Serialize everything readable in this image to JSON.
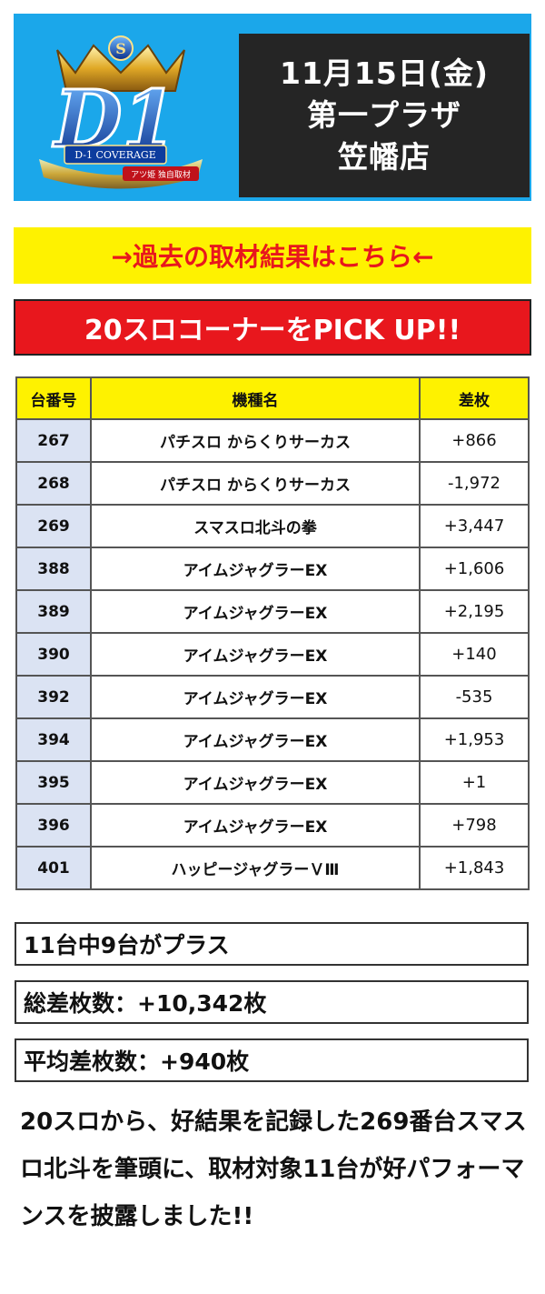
{
  "header": {
    "logo": {
      "letters": "D1",
      "badge": "S",
      "ribbon": "D-1 COVERAGE",
      "sub": "アツ姫 独自取材"
    },
    "date_line": "11月15日(金)",
    "store_line1": "第一プラザ",
    "store_line2": "笠幡店"
  },
  "past_link_label": "→過去の取材結果はこちら←",
  "pickup_heading": "20スロコーナーをPICK UP!!",
  "table": {
    "headers": [
      "台番号",
      "機種名",
      "差枚"
    ],
    "rows": [
      {
        "num": "267",
        "name": "パチスロ からくりサーカス",
        "diff": "+866"
      },
      {
        "num": "268",
        "name": "パチスロ からくりサーカス",
        "diff": "-1,972"
      },
      {
        "num": "269",
        "name": "スマスロ北斗の拳",
        "diff": "+3,447"
      },
      {
        "num": "388",
        "name": "アイムジャグラーEX",
        "diff": "+1,606"
      },
      {
        "num": "389",
        "name": "アイムジャグラーEX",
        "diff": "+2,195"
      },
      {
        "num": "390",
        "name": "アイムジャグラーEX",
        "diff": "+140"
      },
      {
        "num": "392",
        "name": "アイムジャグラーEX",
        "diff": "-535"
      },
      {
        "num": "394",
        "name": "アイムジャグラーEX",
        "diff": "+1,953"
      },
      {
        "num": "395",
        "name": "アイムジャグラーEX",
        "diff": "+1"
      },
      {
        "num": "396",
        "name": "アイムジャグラーEX",
        "diff": "+798"
      },
      {
        "num": "401",
        "name": "ハッピージャグラーＶⅢ",
        "diff": "+1,843"
      }
    ]
  },
  "stats": {
    "plus_count": "11台中9台がプラス",
    "total_diff": "総差枚数：+10,342枚",
    "avg_diff": "平均差枚数：+940枚"
  },
  "summary_text": "20スロから、好結果を記録した269番台スマスロ北斗を筆頭に、取材対象11台が好パフォーマンスを披露しました!!"
}
